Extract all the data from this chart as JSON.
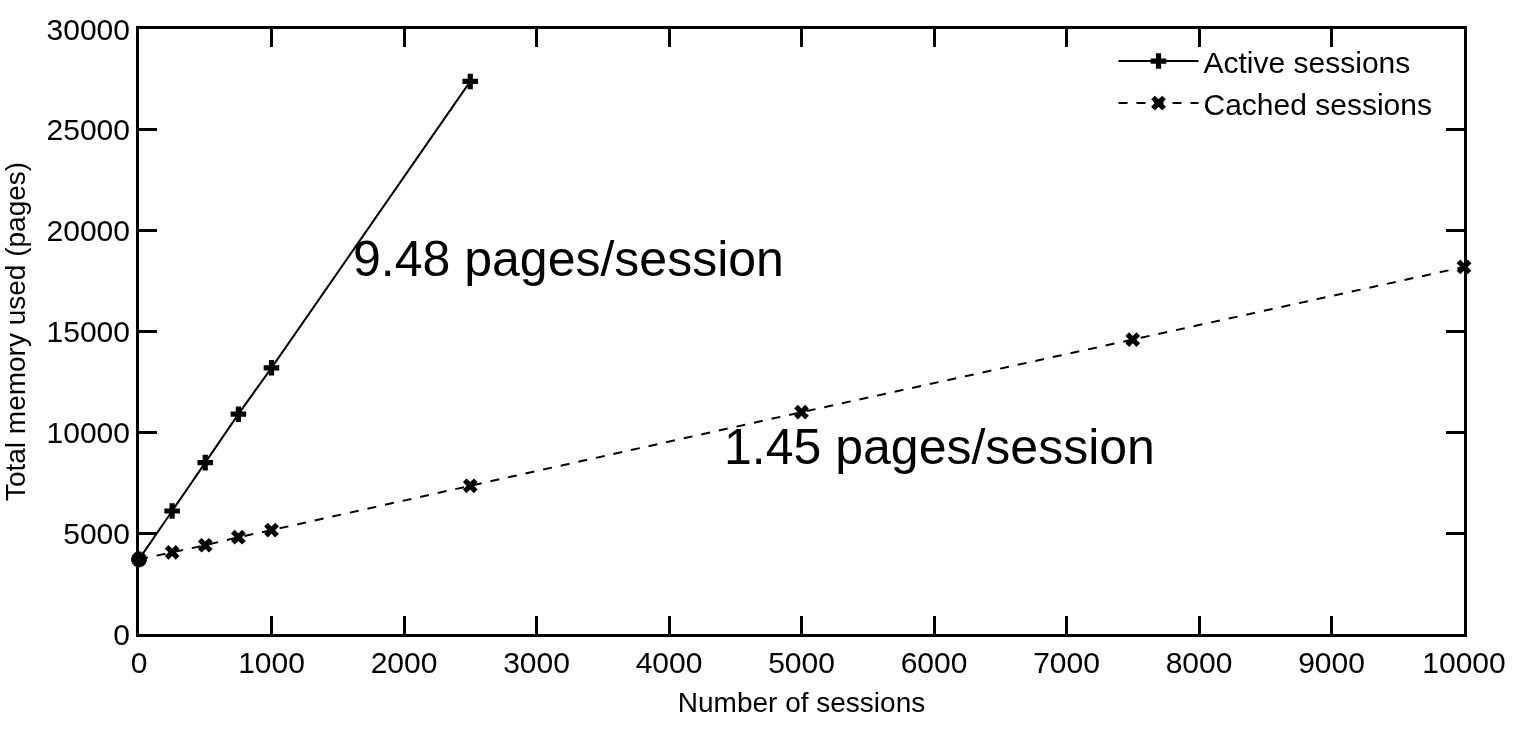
{
  "chart_data": {
    "type": "line",
    "xlabel": "Number of sessions",
    "ylabel": "Total memory used (pages)",
    "xlim": [
      0,
      10000
    ],
    "xticks": [
      0,
      1000,
      2000,
      3000,
      4000,
      5000,
      6000,
      7000,
      8000,
      9000,
      10000
    ],
    "ylim": [
      0,
      30000
    ],
    "yticks": [
      0,
      5000,
      10000,
      15000,
      20000,
      25000,
      30000
    ],
    "legend": "top right",
    "series": [
      {
        "name": "Active sessions",
        "color": "#000000",
        "marker": "cross",
        "line_style": "solid",
        "x": [
          0,
          250,
          500,
          750,
          1000,
          2500
        ],
        "values": [
          3700,
          6100,
          8500,
          10900,
          13200,
          27400
        ]
      },
      {
        "name": "Cached sessions",
        "color": "#000000",
        "marker": "cross",
        "line_style": "dashed",
        "x": [
          0,
          250,
          500,
          750,
          1000,
          2500,
          5000,
          7500,
          10000
        ],
        "values": [
          3700,
          4050,
          4400,
          4800,
          5150,
          7350,
          11000,
          14600,
          18200
        ]
      }
    ],
    "annotations": [
      "9.48 pages/session",
      "1.45 pages/session"
    ]
  }
}
